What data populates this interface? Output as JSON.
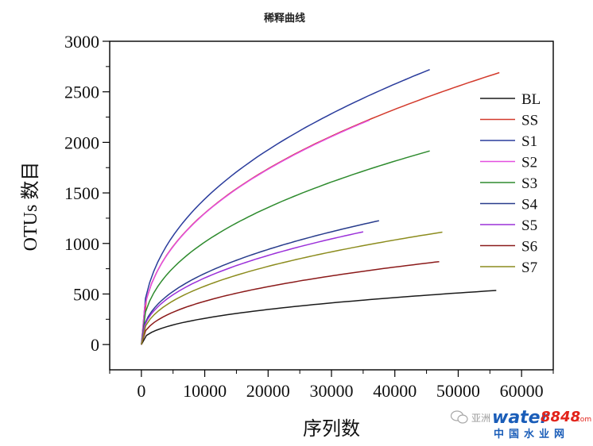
{
  "chart_data": {
    "type": "line",
    "title": "稀释曲线",
    "xlabel": "序列数",
    "ylabel": "OTUs 数目",
    "xlim": [
      -5000,
      65000
    ],
    "ylim": [
      -250,
      3000
    ],
    "xticks": [
      0,
      10000,
      20000,
      30000,
      40000,
      50000,
      60000
    ],
    "yticks": [
      0,
      500,
      1000,
      1500,
      2000,
      2500,
      3000
    ],
    "grid": false,
    "legend": "right",
    "series": [
      {
        "name": "BL",
        "color": "#1a1a1a",
        "max_x": 56000,
        "max_y": 535
      },
      {
        "name": "SS",
        "color": "#d33a2c",
        "max_x": 56500,
        "max_y": 2690
      },
      {
        "name": "S1",
        "color": "#2a3c9c",
        "max_x": 45500,
        "max_y": 2720
      },
      {
        "name": "S2",
        "color": "#e34fe0",
        "max_x": 36000,
        "max_y": 2220
      },
      {
        "name": "S3",
        "color": "#2e8b2e",
        "max_x": 45500,
        "max_y": 1915
      },
      {
        "name": "S4",
        "color": "#283c8c",
        "max_x": 37500,
        "max_y": 1225
      },
      {
        "name": "S5",
        "color": "#9b30d9",
        "max_x": 35000,
        "max_y": 1115
      },
      {
        "name": "S6",
        "color": "#8b1a1a",
        "max_x": 47000,
        "max_y": 820
      },
      {
        "name": "S7",
        "color": "#8c8c1e",
        "max_x": 47500,
        "max_y": 1112
      }
    ]
  },
  "watermark": {
    "prefix": "亚洲",
    "brand": "water",
    "brand_num": "8848",
    "dotcom": ".com",
    "cn": "中国水业网"
  }
}
